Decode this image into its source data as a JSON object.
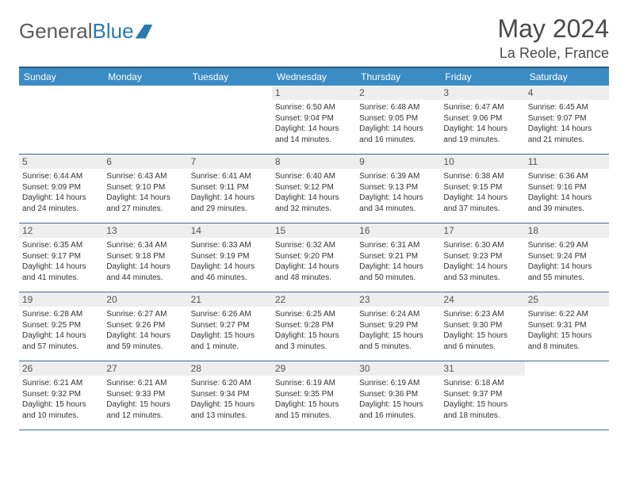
{
  "brand": {
    "name_a": "General",
    "name_b": "Blue"
  },
  "title": "May 2024",
  "location": "La Reole, France",
  "colors": {
    "header_bg": "#3b8bc4",
    "header_border_top": "#2a5a80",
    "week_border": "#3a6a90",
    "daynum_bg": "#eeeeee",
    "text": "#333333"
  },
  "day_names": [
    "Sunday",
    "Monday",
    "Tuesday",
    "Wednesday",
    "Thursday",
    "Friday",
    "Saturday"
  ],
  "weeks": [
    [
      {
        "n": "",
        "sr": "",
        "ss": "",
        "dl": ""
      },
      {
        "n": "",
        "sr": "",
        "ss": "",
        "dl": ""
      },
      {
        "n": "",
        "sr": "",
        "ss": "",
        "dl": ""
      },
      {
        "n": "1",
        "sr": "6:50 AM",
        "ss": "9:04 PM",
        "dl": "14 hours and 14 minutes."
      },
      {
        "n": "2",
        "sr": "6:48 AM",
        "ss": "9:05 PM",
        "dl": "14 hours and 16 minutes."
      },
      {
        "n": "3",
        "sr": "6:47 AM",
        "ss": "9:06 PM",
        "dl": "14 hours and 19 minutes."
      },
      {
        "n": "4",
        "sr": "6:45 AM",
        "ss": "9:07 PM",
        "dl": "14 hours and 21 minutes."
      }
    ],
    [
      {
        "n": "5",
        "sr": "6:44 AM",
        "ss": "9:09 PM",
        "dl": "14 hours and 24 minutes."
      },
      {
        "n": "6",
        "sr": "6:43 AM",
        "ss": "9:10 PM",
        "dl": "14 hours and 27 minutes."
      },
      {
        "n": "7",
        "sr": "6:41 AM",
        "ss": "9:11 PM",
        "dl": "14 hours and 29 minutes."
      },
      {
        "n": "8",
        "sr": "6:40 AM",
        "ss": "9:12 PM",
        "dl": "14 hours and 32 minutes."
      },
      {
        "n": "9",
        "sr": "6:39 AM",
        "ss": "9:13 PM",
        "dl": "14 hours and 34 minutes."
      },
      {
        "n": "10",
        "sr": "6:38 AM",
        "ss": "9:15 PM",
        "dl": "14 hours and 37 minutes."
      },
      {
        "n": "11",
        "sr": "6:36 AM",
        "ss": "9:16 PM",
        "dl": "14 hours and 39 minutes."
      }
    ],
    [
      {
        "n": "12",
        "sr": "6:35 AM",
        "ss": "9:17 PM",
        "dl": "14 hours and 41 minutes."
      },
      {
        "n": "13",
        "sr": "6:34 AM",
        "ss": "9:18 PM",
        "dl": "14 hours and 44 minutes."
      },
      {
        "n": "14",
        "sr": "6:33 AM",
        "ss": "9:19 PM",
        "dl": "14 hours and 46 minutes."
      },
      {
        "n": "15",
        "sr": "6:32 AM",
        "ss": "9:20 PM",
        "dl": "14 hours and 48 minutes."
      },
      {
        "n": "16",
        "sr": "6:31 AM",
        "ss": "9:21 PM",
        "dl": "14 hours and 50 minutes."
      },
      {
        "n": "17",
        "sr": "6:30 AM",
        "ss": "9:23 PM",
        "dl": "14 hours and 53 minutes."
      },
      {
        "n": "18",
        "sr": "6:29 AM",
        "ss": "9:24 PM",
        "dl": "14 hours and 55 minutes."
      }
    ],
    [
      {
        "n": "19",
        "sr": "6:28 AM",
        "ss": "9:25 PM",
        "dl": "14 hours and 57 minutes."
      },
      {
        "n": "20",
        "sr": "6:27 AM",
        "ss": "9:26 PM",
        "dl": "14 hours and 59 minutes."
      },
      {
        "n": "21",
        "sr": "6:26 AM",
        "ss": "9:27 PM",
        "dl": "15 hours and 1 minute."
      },
      {
        "n": "22",
        "sr": "6:25 AM",
        "ss": "9:28 PM",
        "dl": "15 hours and 3 minutes."
      },
      {
        "n": "23",
        "sr": "6:24 AM",
        "ss": "9:29 PM",
        "dl": "15 hours and 5 minutes."
      },
      {
        "n": "24",
        "sr": "6:23 AM",
        "ss": "9:30 PM",
        "dl": "15 hours and 6 minutes."
      },
      {
        "n": "25",
        "sr": "6:22 AM",
        "ss": "9:31 PM",
        "dl": "15 hours and 8 minutes."
      }
    ],
    [
      {
        "n": "26",
        "sr": "6:21 AM",
        "ss": "9:32 PM",
        "dl": "15 hours and 10 minutes."
      },
      {
        "n": "27",
        "sr": "6:21 AM",
        "ss": "9:33 PM",
        "dl": "15 hours and 12 minutes."
      },
      {
        "n": "28",
        "sr": "6:20 AM",
        "ss": "9:34 PM",
        "dl": "15 hours and 13 minutes."
      },
      {
        "n": "29",
        "sr": "6:19 AM",
        "ss": "9:35 PM",
        "dl": "15 hours and 15 minutes."
      },
      {
        "n": "30",
        "sr": "6:19 AM",
        "ss": "9:36 PM",
        "dl": "15 hours and 16 minutes."
      },
      {
        "n": "31",
        "sr": "6:18 AM",
        "ss": "9:37 PM",
        "dl": "15 hours and 18 minutes."
      },
      {
        "n": "",
        "sr": "",
        "ss": "",
        "dl": ""
      }
    ]
  ]
}
